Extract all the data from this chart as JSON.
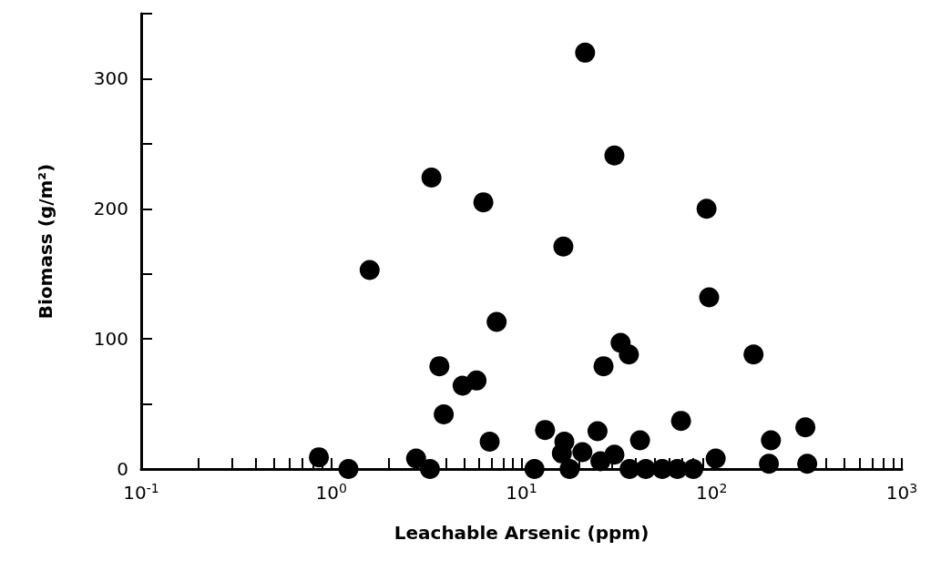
{
  "chart_data": {
    "type": "scatter",
    "xlabel": "Leachable Arsenic (ppm)",
    "ylabel": "Biomass (g/m²)",
    "log": "x",
    "marker": "circle",
    "grid": false,
    "xlim": [
      0.1,
      1000
    ],
    "ylim": [
      0,
      350
    ],
    "xticks": [
      {
        "value": 0.1,
        "label": "10$^{-1}$"
      },
      {
        "value": 0.2,
        "label": null
      },
      {
        "value": 0.3,
        "label": null
      },
      {
        "value": 0.4,
        "label": null
      },
      {
        "value": 0.5,
        "label": null
      },
      {
        "value": 0.6,
        "label": null
      },
      {
        "value": 0.7,
        "label": null
      },
      {
        "value": 0.8,
        "label": null
      },
      {
        "value": 0.9,
        "label": null
      },
      {
        "value": 1,
        "label": "10$^{0}$"
      },
      {
        "value": 2,
        "label": null
      },
      {
        "value": 3,
        "label": null
      },
      {
        "value": 4,
        "label": null
      },
      {
        "value": 5,
        "label": null
      },
      {
        "value": 6,
        "label": null
      },
      {
        "value": 7,
        "label": null
      },
      {
        "value": 8,
        "label": null
      },
      {
        "value": 9,
        "label": null
      },
      {
        "value": 10,
        "label": "10$^{1}$"
      },
      {
        "value": 20,
        "label": null
      },
      {
        "value": 30,
        "label": null
      },
      {
        "value": 40,
        "label": null
      },
      {
        "value": 50,
        "label": null
      },
      {
        "value": 60,
        "label": null
      },
      {
        "value": 70,
        "label": null
      },
      {
        "value": 80,
        "label": null
      },
      {
        "value": 90,
        "label": null
      },
      {
        "value": 100,
        "label": "10$^{2}$"
      },
      {
        "value": 200,
        "label": null
      },
      {
        "value": 300,
        "label": null
      },
      {
        "value": 400,
        "label": null
      },
      {
        "value": 500,
        "label": null
      },
      {
        "value": 600,
        "label": null
      },
      {
        "value": 700,
        "label": null
      },
      {
        "value": 800,
        "label": null
      },
      {
        "value": 900,
        "label": null
      },
      {
        "value": 1000,
        "label": "10$^{3}$"
      }
    ],
    "yticks": [
      0,
      {
        "value": 50,
        "label": null
      },
      100,
      {
        "value": 150,
        "label": null
      },
      200,
      {
        "value": 250,
        "label": null
      },
      300,
      {
        "value": 350,
        "label": null
      }
    ],
    "series": [
      {
        "color": "#000000",
        "x": [
          0.86,
          1.23,
          1.59,
          2.79,
          3.3,
          3.36,
          3.7,
          3.9,
          4.9,
          5.8,
          6.3,
          6.8,
          7.4,
          11.7,
          13.3,
          16.3,
          16.6,
          16.8,
          17.9,
          20.9,
          21.6,
          25.1,
          26,
          27,
          30.8,
          30.8,
          33.2,
          36.7,
          37,
          42,
          45,
          55,
          66,
          69,
          80,
          94,
          97,
          105,
          166,
          200,
          205,
          311,
          318
        ],
        "values": [
          9,
          0,
          153,
          8,
          0,
          224,
          79,
          42,
          64,
          68,
          205,
          21,
          113,
          0,
          30,
          12,
          171,
          21,
          0,
          13,
          320,
          29,
          6,
          79,
          241,
          11,
          97,
          88,
          0,
          22,
          0,
          0,
          0,
          37,
          0,
          200,
          132,
          8,
          88,
          4,
          22,
          32,
          4
        ]
      }
    ]
  }
}
